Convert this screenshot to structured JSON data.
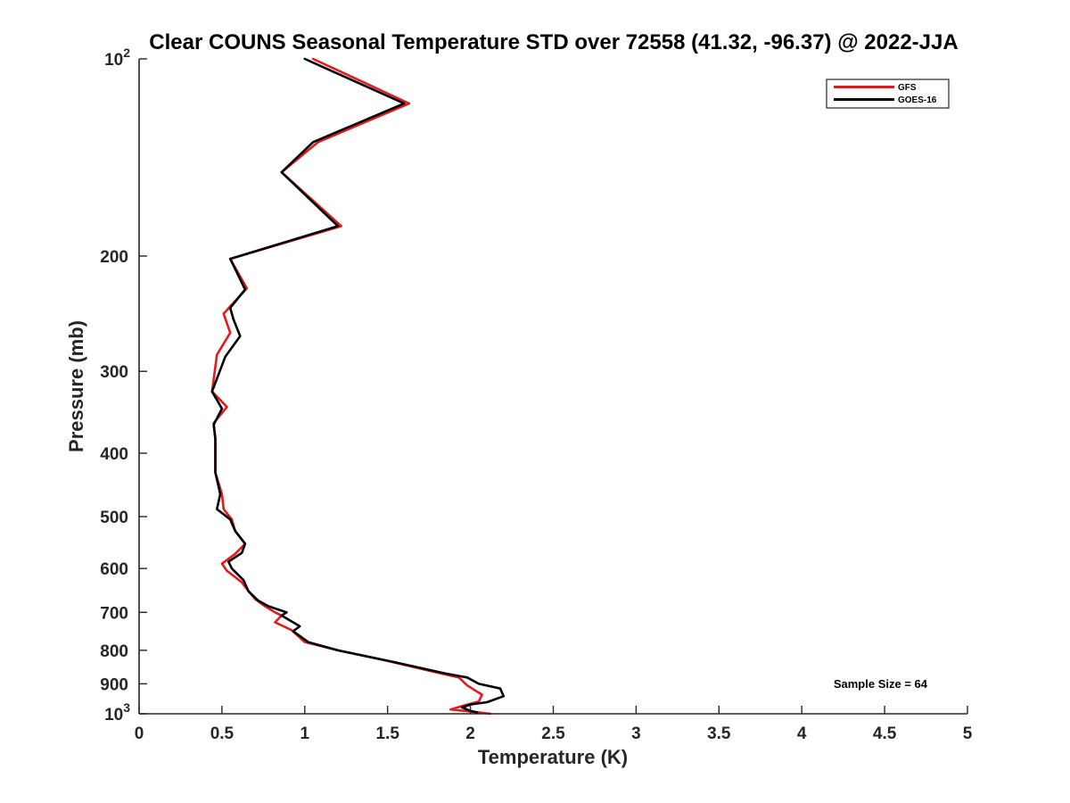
{
  "chart_data": {
    "type": "line",
    "title": "Clear COUNS Seasonal Temperature STD over 72558 (41.32, -96.37) @ 2022-JJA",
    "xlabel": "Temperature (K)",
    "ylabel": "Pressure (mb)",
    "xlim": [
      0,
      5
    ],
    "ylim": [
      100,
      1000
    ],
    "y_scale": "log",
    "y_reversed": true,
    "grid": false,
    "legend_position": "top-right",
    "x_ticks": [
      {
        "value": 0,
        "label": "0"
      },
      {
        "value": 0.5,
        "label": "0.5"
      },
      {
        "value": 1,
        "label": "1"
      },
      {
        "value": 1.5,
        "label": "1.5"
      },
      {
        "value": 2,
        "label": "2"
      },
      {
        "value": 2.5,
        "label": "2.5"
      },
      {
        "value": 3,
        "label": "3"
      },
      {
        "value": 3.5,
        "label": "3.5"
      },
      {
        "value": 4,
        "label": "4"
      },
      {
        "value": 4.5,
        "label": "4.5"
      },
      {
        "value": 5,
        "label": "5"
      }
    ],
    "y_ticks": [
      {
        "value": 100,
        "base": "10",
        "exp": "2"
      },
      {
        "value": 200,
        "label": "200"
      },
      {
        "value": 300,
        "label": "300"
      },
      {
        "value": 400,
        "label": "400"
      },
      {
        "value": 500,
        "label": "500"
      },
      {
        "value": 600,
        "label": "600"
      },
      {
        "value": 700,
        "label": "700"
      },
      {
        "value": 800,
        "label": "800"
      },
      {
        "value": 900,
        "label": "900"
      },
      {
        "value": 1000,
        "base": "10",
        "exp": "3"
      }
    ],
    "series": [
      {
        "name": "GFS",
        "color": "#e41a1c",
        "points": [
          [
            1.05,
            100
          ],
          [
            1.63,
            117
          ],
          [
            1.08,
            134
          ],
          [
            0.86,
            149
          ],
          [
            1.22,
            180
          ],
          [
            0.55,
            202
          ],
          [
            0.65,
            224
          ],
          [
            0.51,
            245
          ],
          [
            0.55,
            262
          ],
          [
            0.47,
            283
          ],
          [
            0.44,
            322
          ],
          [
            0.53,
            340
          ],
          [
            0.45,
            360
          ],
          [
            0.46,
            380
          ],
          [
            0.46,
            428
          ],
          [
            0.5,
            462
          ],
          [
            0.51,
            487
          ],
          [
            0.56,
            505
          ],
          [
            0.58,
            526
          ],
          [
            0.64,
            550
          ],
          [
            0.58,
            570
          ],
          [
            0.5,
            590
          ],
          [
            0.53,
            605
          ],
          [
            0.62,
            630
          ],
          [
            0.64,
            640
          ],
          [
            0.7,
            668
          ],
          [
            0.76,
            685
          ],
          [
            0.82,
            700
          ],
          [
            0.86,
            708
          ],
          [
            0.82,
            725
          ],
          [
            0.92,
            745
          ],
          [
            1.0,
            777
          ],
          [
            1.2,
            800
          ],
          [
            1.48,
            828
          ],
          [
            1.8,
            865
          ],
          [
            1.93,
            880
          ],
          [
            1.98,
            905
          ],
          [
            2.07,
            935
          ],
          [
            2.05,
            958
          ],
          [
            1.97,
            970
          ],
          [
            1.88,
            985
          ],
          [
            2.05,
            995
          ],
          [
            2.12,
            1000
          ]
        ]
      },
      {
        "name": "GOES-16",
        "color": "#000000",
        "points": [
          [
            1.0,
            100
          ],
          [
            1.6,
            117
          ],
          [
            1.05,
            134
          ],
          [
            0.86,
            149
          ],
          [
            1.2,
            180
          ],
          [
            0.55,
            202
          ],
          [
            0.64,
            225
          ],
          [
            0.55,
            240
          ],
          [
            0.57,
            250
          ],
          [
            0.61,
            265
          ],
          [
            0.52,
            285
          ],
          [
            0.44,
            322
          ],
          [
            0.5,
            342
          ],
          [
            0.45,
            362
          ],
          [
            0.46,
            380
          ],
          [
            0.46,
            428
          ],
          [
            0.49,
            462
          ],
          [
            0.47,
            487
          ],
          [
            0.55,
            505
          ],
          [
            0.58,
            526
          ],
          [
            0.64,
            550
          ],
          [
            0.62,
            568
          ],
          [
            0.54,
            586
          ],
          [
            0.56,
            600
          ],
          [
            0.63,
            625
          ],
          [
            0.66,
            650
          ],
          [
            0.72,
            672
          ],
          [
            0.78,
            685
          ],
          [
            0.89,
            700
          ],
          [
            0.86,
            708
          ],
          [
            0.97,
            735
          ],
          [
            0.93,
            748
          ],
          [
            1.02,
            777
          ],
          [
            1.2,
            800
          ],
          [
            1.55,
            835
          ],
          [
            1.85,
            868
          ],
          [
            1.98,
            880
          ],
          [
            2.05,
            900
          ],
          [
            2.18,
            915
          ],
          [
            2.2,
            940
          ],
          [
            2.1,
            960
          ],
          [
            2.0,
            968
          ],
          [
            1.95,
            978
          ],
          [
            2.0,
            990
          ],
          [
            2.04,
            995
          ]
        ]
      }
    ],
    "annotations": [
      {
        "text": "Sample Size = 64"
      }
    ]
  }
}
